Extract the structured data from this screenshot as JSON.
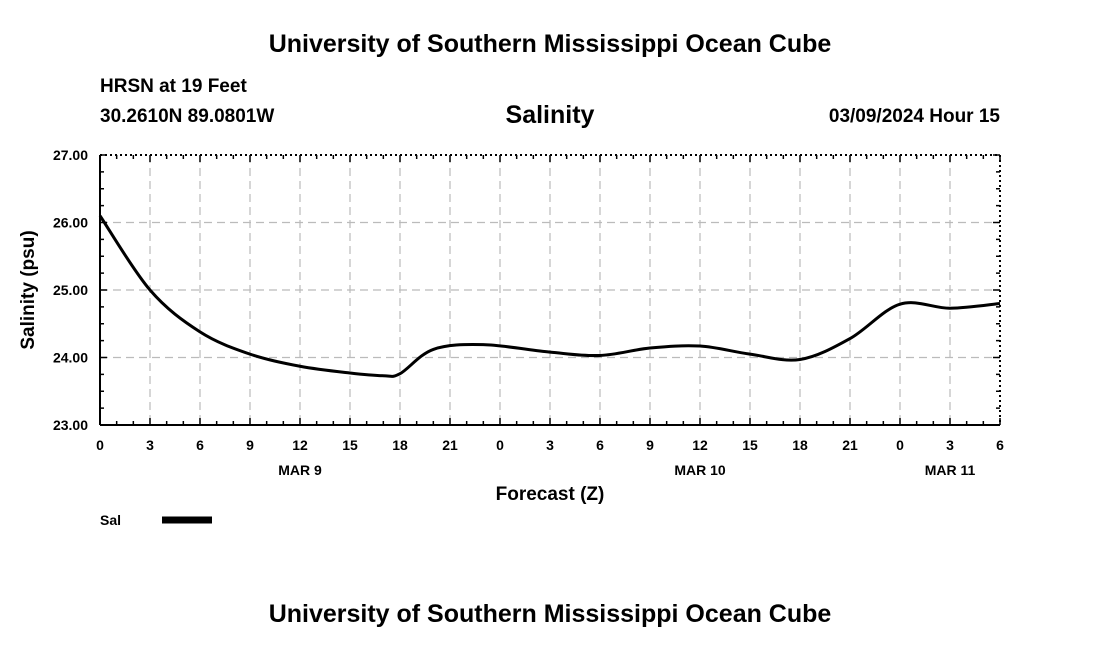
{
  "header": {
    "title": "University of Southern Mississippi Ocean Cube",
    "station": "HRSN at 19 Feet",
    "coordinates": "30.2610N  89.0801W",
    "chart_title": "Salinity",
    "datetime": "03/09/2024 Hour 15"
  },
  "footer": {
    "title": "University of Southern Mississippi Ocean Cube"
  },
  "chart_data": {
    "type": "line",
    "title": "Salinity",
    "xlabel": "Forecast (Z)",
    "ylabel": "Salinity (psu)",
    "ylim": [
      23.0,
      27.0
    ],
    "xlim": [
      0,
      54
    ],
    "yticks": [
      "23.00",
      "24.00",
      "25.00",
      "26.00",
      "27.00"
    ],
    "xticks": [
      "0",
      "3",
      "6",
      "9",
      "12",
      "15",
      "18",
      "21",
      "0",
      "3",
      "6",
      "9",
      "12",
      "15",
      "18",
      "21",
      "0",
      "3",
      "6"
    ],
    "date_labels": [
      {
        "label": "MAR 9",
        "hour": 12
      },
      {
        "label": "MAR 10",
        "hour": 36
      },
      {
        "label": "MAR 11",
        "hour": 51
      }
    ],
    "grid": true,
    "legend_position": "bottom-left",
    "line_color": "#000000",
    "series": [
      {
        "name": "Sal",
        "x": [
          0,
          3,
          6,
          9,
          12,
          15,
          17,
          18,
          20,
          23,
          27,
          30,
          33,
          36,
          39,
          42,
          45,
          48,
          51,
          54
        ],
        "values": [
          26.1,
          25.0,
          24.38,
          24.05,
          23.87,
          23.77,
          23.73,
          23.76,
          24.12,
          24.19,
          24.08,
          24.03,
          24.14,
          24.17,
          24.05,
          23.97,
          24.28,
          24.79,
          24.73,
          24.8
        ]
      }
    ]
  }
}
